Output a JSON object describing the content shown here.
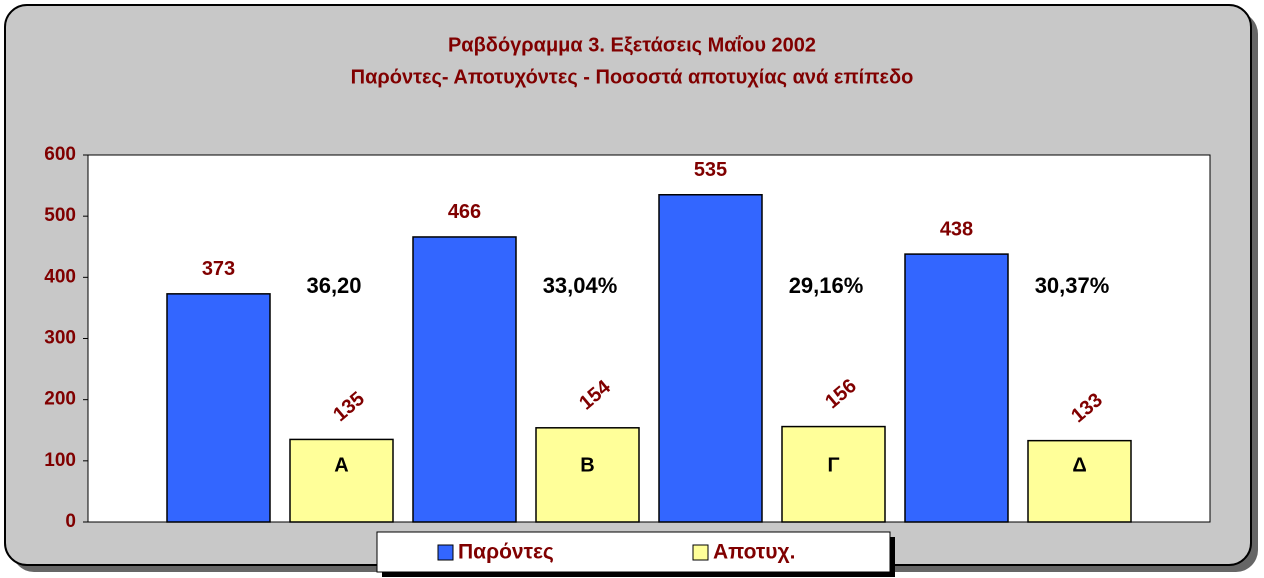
{
  "chart_data": {
    "type": "bar",
    "title": [
      "Ραβδόγραμμα 3.  Εξετάσεις Μαΐου 2002",
      "Παρόντες- Αποτυχόντες - Ποσοστά αποτυχίας ανά επίπεδο"
    ],
    "categories": [
      "Α",
      "Β",
      "Γ",
      "Δ"
    ],
    "series": [
      {
        "name": "Παρόντες",
        "color": "#3366ff",
        "values": [
          373,
          466,
          535,
          438
        ]
      },
      {
        "name": "Αποτυχ.",
        "color": "#ffff99",
        "values": [
          135,
          154,
          156,
          133
        ]
      }
    ],
    "annotations": [
      "36,20",
      "33,04%",
      "29,16%",
      "30,37%"
    ],
    "ylim": [
      0,
      600
    ],
    "yticks": [
      0,
      100,
      200,
      300,
      400,
      500,
      600
    ],
    "grid": false,
    "legend": "bottom"
  }
}
